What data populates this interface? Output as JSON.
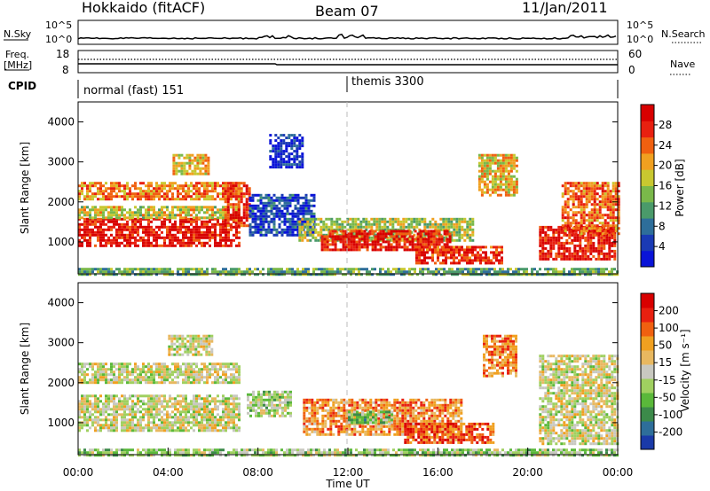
{
  "header": {
    "station": "Hokkaido (fitACF)",
    "beam": "Beam 07",
    "date": "11/Jan/2011"
  },
  "noise_panel": {
    "left_label": "N.Sky",
    "right_label": "N.Search",
    "left_ticks": [
      "10^5",
      "10^0"
    ],
    "right_ticks": [
      "10^5",
      "10^0"
    ]
  },
  "freq_panel": {
    "left_label_line1": "Freq.",
    "left_label_line2": "[MHz]",
    "right_label": "Nave",
    "left_ticks": [
      "18",
      "8"
    ],
    "right_ticks": [
      "60",
      "0"
    ]
  },
  "cpid": {
    "label": "CPID",
    "segments": [
      {
        "name": "normal (fast) 151",
        "start_hour": 0,
        "end_hour": 12
      },
      {
        "name": "themis 3300",
        "start_hour": 12,
        "end_hour": 24
      }
    ]
  },
  "colors": {
    "power_scale": [
      "#0a14d8",
      "#1a3ab4",
      "#2e6e9a",
      "#4a9a6a",
      "#7ab84a",
      "#c8c830",
      "#f0a020",
      "#f06010",
      "#e82010",
      "#d80000"
    ],
    "velocity_scale": [
      "#1a3aa8",
      "#2e6e9a",
      "#3c8a4a",
      "#5ab83a",
      "#a0d060",
      "#c8c8c0",
      "#e8b860",
      "#f0a020",
      "#f06010",
      "#e82010",
      "#d80000"
    ]
  },
  "chart_data": [
    {
      "type": "heatmap",
      "name": "power",
      "ylabel": "Slant Range [km]",
      "yticks": [
        "4000",
        "3000",
        "2000",
        "1000"
      ],
      "ylim": [
        200,
        4500
      ],
      "xlim_hours": [
        0,
        24
      ],
      "colorbar": {
        "label": "Power [dB]",
        "ticks": [
          "28",
          "24",
          "20",
          "16",
          "12",
          "8",
          "4"
        ],
        "range": [
          0,
          32
        ]
      },
      "regions": [
        {
          "t0": 0.0,
          "t1": 7.2,
          "r0": 900,
          "r1": 1600,
          "level": 0.92
        },
        {
          "t0": 0.0,
          "t1": 7.2,
          "r0": 1600,
          "r1": 1900,
          "level": 0.55
        },
        {
          "t0": 0.0,
          "t1": 7.2,
          "r0": 2100,
          "r1": 2500,
          "level": 0.7
        },
        {
          "t0": 4.2,
          "t1": 5.8,
          "r0": 2700,
          "r1": 3200,
          "level": 0.6
        },
        {
          "t0": 6.5,
          "t1": 7.6,
          "r0": 1400,
          "r1": 2500,
          "level": 0.85
        },
        {
          "t0": 7.6,
          "t1": 10.5,
          "r0": 1200,
          "r1": 2200,
          "level": 0.15
        },
        {
          "t0": 8.5,
          "t1": 10.0,
          "r0": 2900,
          "r1": 3700,
          "level": 0.1
        },
        {
          "t0": 9.8,
          "t1": 17.5,
          "r0": 1050,
          "r1": 1600,
          "level": 0.5
        },
        {
          "t0": 10.8,
          "t1": 16.5,
          "r0": 800,
          "r1": 1300,
          "level": 0.9
        },
        {
          "t0": 15.0,
          "t1": 18.8,
          "r0": 500,
          "r1": 900,
          "level": 0.85
        },
        {
          "t0": 17.8,
          "t1": 19.5,
          "r0": 2200,
          "r1": 3200,
          "level": 0.6
        },
        {
          "t0": 20.5,
          "t1": 23.9,
          "r0": 600,
          "r1": 1400,
          "level": 0.9
        },
        {
          "t0": 21.5,
          "t1": 24.0,
          "r0": 1200,
          "r1": 2500,
          "level": 0.75
        },
        {
          "t0": 0.0,
          "t1": 24.0,
          "r0": 200,
          "r1": 350,
          "level": 0.4
        }
      ]
    },
    {
      "type": "heatmap",
      "name": "velocity",
      "ylabel": "Slant Range [km]",
      "yticks": [
        "4000",
        "3000",
        "2000",
        "1000"
      ],
      "ylim": [
        200,
        4500
      ],
      "xlim_hours": [
        0,
        24
      ],
      "xticks": [
        "00:00",
        "04:00",
        "08:00",
        "12:00",
        "16:00",
        "20:00",
        "00:00"
      ],
      "xlabel": "Time UT",
      "colorbar": {
        "label": "Velocity [m s⁻¹]",
        "ticks": [
          "200",
          "100",
          "50",
          "15",
          "-15",
          "-50",
          "-100",
          "-200"
        ],
        "range": [
          -250,
          250
        ]
      },
      "regions": [
        {
          "t0": 0.0,
          "t1": 7.2,
          "r0": 800,
          "r1": 1700,
          "level": 0.5
        },
        {
          "t0": 0.0,
          "t1": 7.2,
          "r0": 2000,
          "r1": 2500,
          "level": 0.5
        },
        {
          "t0": 4.0,
          "t1": 6.0,
          "r0": 2700,
          "r1": 3200,
          "level": 0.5
        },
        {
          "t0": 7.5,
          "t1": 9.5,
          "r0": 1200,
          "r1": 1800,
          "level": 0.42
        },
        {
          "t0": 10.0,
          "t1": 17.0,
          "r0": 700,
          "r1": 1600,
          "level": 0.7
        },
        {
          "t0": 12.0,
          "t1": 14.0,
          "r0": 1000,
          "r1": 1300,
          "level": 0.35
        },
        {
          "t0": 14.5,
          "t1": 18.5,
          "r0": 500,
          "r1": 1000,
          "level": 0.8
        },
        {
          "t0": 18.0,
          "t1": 19.5,
          "r0": 2200,
          "r1": 3200,
          "level": 0.72
        },
        {
          "t0": 20.5,
          "t1": 24.0,
          "r0": 500,
          "r1": 2700,
          "level": 0.5
        },
        {
          "t0": 0.0,
          "t1": 24.0,
          "r0": 200,
          "r1": 350,
          "level": 0.4
        }
      ]
    }
  ]
}
